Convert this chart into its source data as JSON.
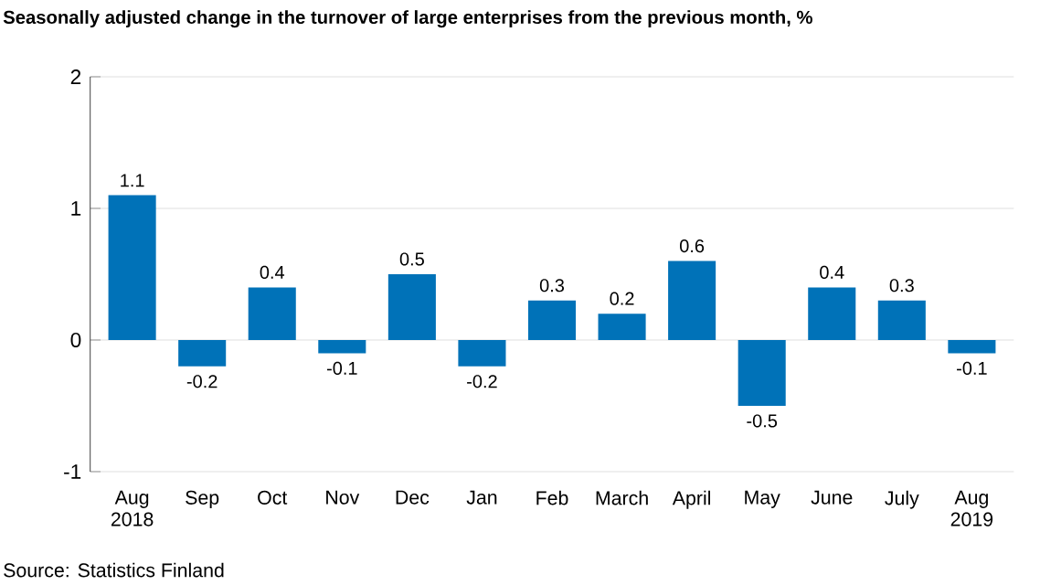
{
  "chart_data": {
    "type": "bar",
    "title": "Seasonally adjusted change in the turnover of large enterprises from the previous month, %",
    "categories": [
      "Aug 2018",
      "Sep",
      "Oct",
      "Nov",
      "Dec",
      "Jan",
      "Feb",
      "March",
      "April",
      "May",
      "June",
      "July",
      "Aug 2019"
    ],
    "values": [
      1.1,
      -0.2,
      0.4,
      -0.1,
      0.5,
      -0.2,
      0.3,
      0.2,
      0.6,
      -0.5,
      0.4,
      0.3,
      -0.1
    ],
    "color": "#0072b8",
    "ylim": [
      -1,
      2
    ],
    "yticks": [
      -1,
      0,
      1,
      2
    ],
    "grid": "y",
    "data_labels": true,
    "annotations": [
      "Source: Statistics Finland"
    ]
  }
}
